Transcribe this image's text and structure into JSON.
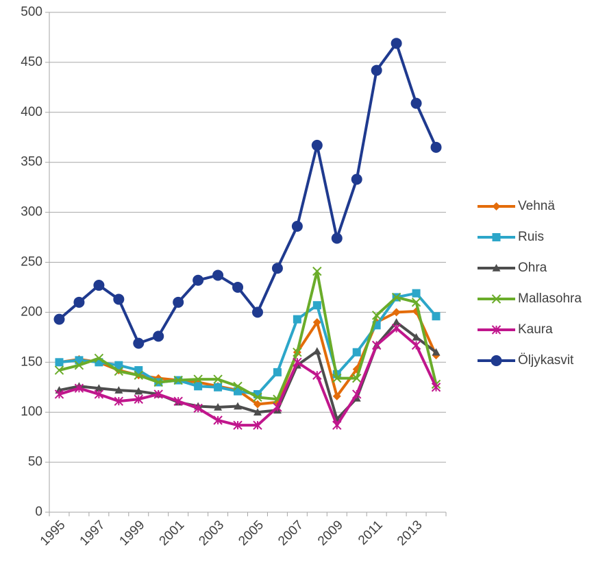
{
  "chart_data": {
    "type": "line",
    "categories": [
      "1995",
      null,
      "1997",
      null,
      "1999",
      null,
      "2001",
      null,
      "2003",
      null,
      "2005",
      null,
      "2007",
      null,
      "2009",
      null,
      "2011",
      null,
      "2013",
      null
    ],
    "ylim": [
      0,
      500
    ],
    "yticks": [
      0,
      50,
      100,
      150,
      200,
      250,
      300,
      350,
      400,
      450,
      500
    ],
    "grid": true,
    "legend": "right",
    "series": [
      {
        "name": "Vehnä",
        "color": "#e36c0a",
        "marker": "diamond",
        "values": [
          150,
          153,
          150,
          142,
          137,
          134,
          132,
          130,
          126,
          122,
          108,
          110,
          160,
          190,
          116,
          143,
          190,
          200,
          201,
          157
        ]
      },
      {
        "name": "Ruis",
        "color": "#2ca6c9",
        "marker": "square",
        "values": [
          150,
          152,
          150,
          147,
          142,
          130,
          132,
          126,
          125,
          121,
          118,
          140,
          193,
          207,
          138,
          160,
          187,
          215,
          219,
          196
        ]
      },
      {
        "name": "Ohra",
        "color": "#4d4d4d",
        "marker": "triangle",
        "values": [
          122,
          126,
          124,
          122,
          121,
          118,
          110,
          106,
          105,
          106,
          100,
          102,
          147,
          161,
          93,
          114,
          167,
          190,
          175,
          160
        ]
      },
      {
        "name": "Mallasohra",
        "color": "#6aac2a",
        "marker": "x",
        "values": [
          142,
          147,
          154,
          141,
          137,
          130,
          132,
          133,
          133,
          126,
          115,
          113,
          160,
          241,
          134,
          134,
          197,
          215,
          210,
          128
        ]
      },
      {
        "name": "Kaura",
        "color": "#c0168c",
        "marker": "star",
        "values": [
          118,
          124,
          118,
          111,
          113,
          118,
          111,
          104,
          92,
          87,
          87,
          105,
          150,
          137,
          87,
          118,
          167,
          184,
          167,
          125
        ]
      },
      {
        "name": "Öljykasvit",
        "color": "#1f3a8f",
        "marker": "circle",
        "values": [
          193,
          210,
          227,
          213,
          169,
          176,
          210,
          232,
          237,
          225,
          200,
          244,
          286,
          367,
          274,
          333,
          442,
          469,
          409,
          365
        ]
      }
    ]
  }
}
